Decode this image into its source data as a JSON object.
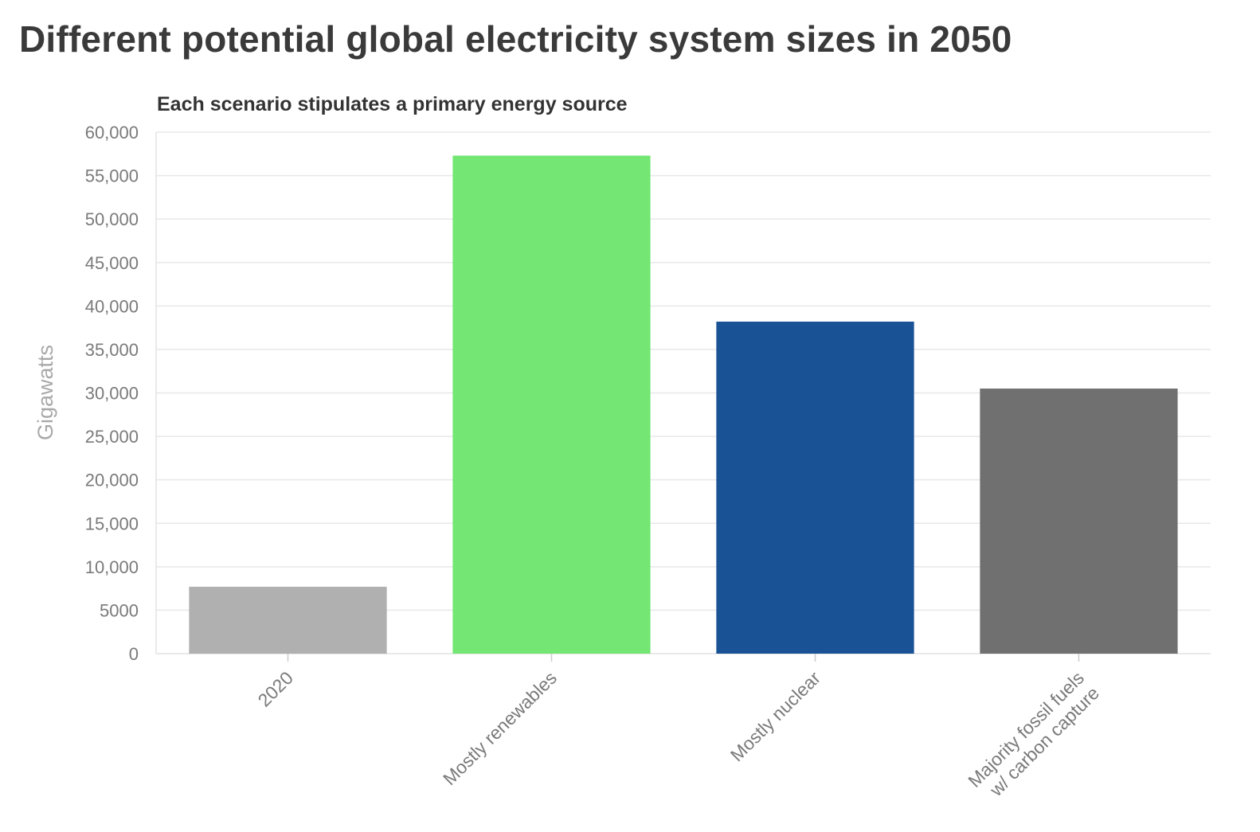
{
  "chart_data": {
    "type": "bar",
    "title": "Different potential global electricity system sizes in 2050",
    "subtitle": "Each scenario stipulates a primary energy source",
    "xlabel": "",
    "ylabel": "Gigawatts",
    "categories": [
      "2020",
      "Mostly renewables",
      "Mostly nuclear",
      "Majority fossil fuels\nw/ carbon capture"
    ],
    "values": [
      7700,
      57300,
      38200,
      30500
    ],
    "colors": [
      "#b0b0b0",
      "#73e673",
      "#1a5296",
      "#707070"
    ],
    "ylim": [
      0,
      60000
    ],
    "yticks": [
      0,
      5000,
      10000,
      15000,
      20000,
      25000,
      30000,
      35000,
      40000,
      45000,
      50000,
      55000,
      60000
    ],
    "ytick_labels": [
      "0",
      "5000",
      "10,000",
      "15,000",
      "20,000",
      "25,000",
      "30,000",
      "35,000",
      "40,000",
      "45,000",
      "50,000",
      "55,000",
      "60,000"
    ],
    "grid": true,
    "legend": "none"
  }
}
